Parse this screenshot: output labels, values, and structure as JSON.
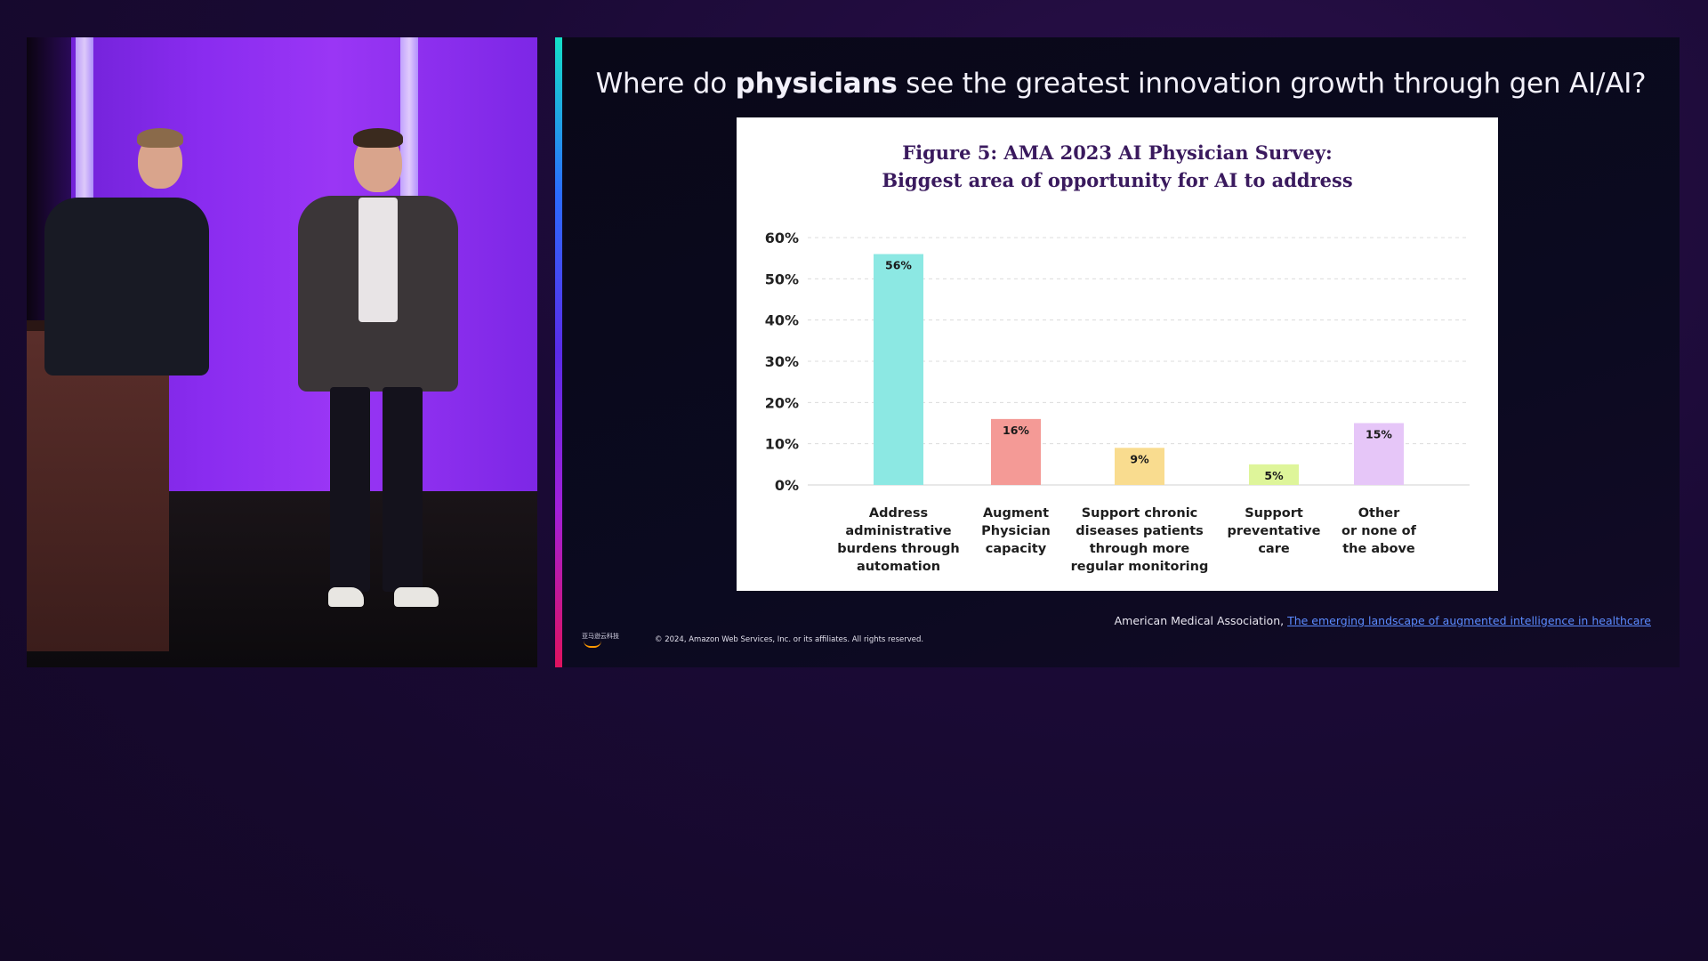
{
  "slide": {
    "title_pre": "Where do ",
    "title_bold": "physicians",
    "title_post": " see the greatest innovation growth through gen AI/AI?",
    "source_text": "American Medical Association, ",
    "source_link": "The emerging landscape of augmented intelligence in healthcare",
    "copyright": "© 2024, Amazon Web Services, Inc. or its affiliates. All rights reserved.",
    "logo_text": "亚马逊云科技"
  },
  "colors": {
    "accent_gradient": [
      "#14e0c8",
      "#2b6bff",
      "#a21fd8",
      "#e0125e"
    ],
    "title_text": "#3a1a5e"
  },
  "chart_data": {
    "type": "bar",
    "title_line1": "Figure 5: AMA 2023 AI Physician Survey:",
    "title_line2": "Biggest area of opportunity for AI to address",
    "categories": [
      [
        "Address",
        "administrative",
        "burdens through",
        "automation"
      ],
      [
        "Augment",
        "Physician",
        "capacity"
      ],
      [
        "Support chronic",
        "diseases patients",
        "through more",
        "regular monitoring"
      ],
      [
        "Support",
        "preventative",
        "care"
      ],
      [
        "Other",
        "or none of",
        "the above"
      ]
    ],
    "values": [
      56,
      16,
      9,
      5,
      15
    ],
    "value_labels": [
      "56%",
      "16%",
      "9%",
      "5%",
      "15%"
    ],
    "colors": [
      "#8ce8e3",
      "#f49a96",
      "#f9dc8f",
      "#def59a",
      "#e6c6f8"
    ],
    "yticks": [
      "0%",
      "10%",
      "20%",
      "30%",
      "40%",
      "50%",
      "60%"
    ],
    "ylim": [
      0,
      60
    ],
    "grid": true
  }
}
